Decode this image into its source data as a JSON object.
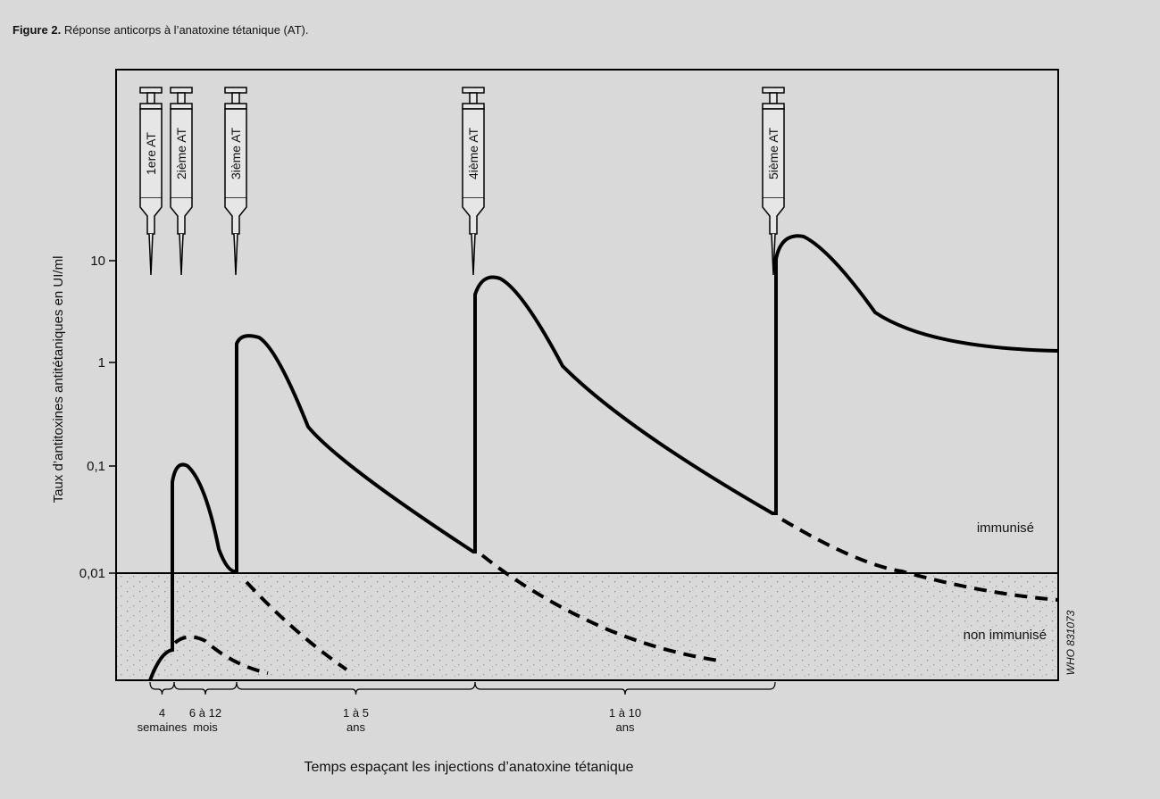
{
  "figure": {
    "label": "Figure 2.",
    "caption": "Réponse anticorps à l’anatoxine tétanique (AT)."
  },
  "y_axis": {
    "title": "Taux d’antitoxines antitétaniques en UI/ml",
    "ticks": [
      "10",
      "1",
      "0,1",
      "0,01"
    ]
  },
  "injections": [
    "1ere AT",
    "2ième AT",
    "3ième AT",
    "4ième AT",
    "5ième AT"
  ],
  "zones": {
    "immune": "immunisé",
    "non_immune": "non immunisé"
  },
  "intervals": [
    {
      "lines": [
        "4",
        "semaines"
      ]
    },
    {
      "lines": [
        "6 à 12",
        "mois"
      ]
    },
    {
      "lines": [
        "1 à 5",
        "ans"
      ]
    },
    {
      "lines": [
        "1 à 10",
        "ans"
      ]
    }
  ],
  "x_axis": {
    "title": "Temps espaçant les injections d’anatoxine tétanique"
  },
  "credit": "WHO 831073"
}
